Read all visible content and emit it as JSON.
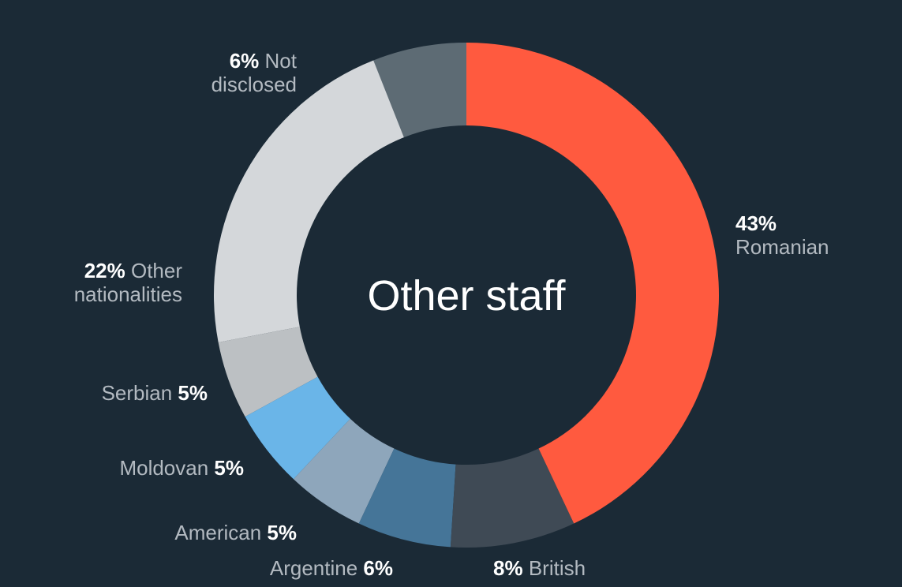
{
  "chart_data": {
    "type": "donut",
    "title": "Other staff",
    "categories": [
      "Romanian",
      "British",
      "Argentine",
      "American",
      "Moldovan",
      "Serbian",
      "Other nationalities",
      "Not disclosed"
    ],
    "values": [
      43,
      8,
      6,
      5,
      5,
      5,
      22,
      6
    ],
    "value_labels": [
      "43%",
      "8%",
      "6%",
      "5%",
      "5%",
      "5%",
      "22%",
      "6%"
    ],
    "colors": [
      "#ff5a3f",
      "#3f4a55",
      "#457598",
      "#8ea6bb",
      "#6ab5e8",
      "#bcc0c3",
      "#d4d7da",
      "#5d6b74"
    ]
  }
}
